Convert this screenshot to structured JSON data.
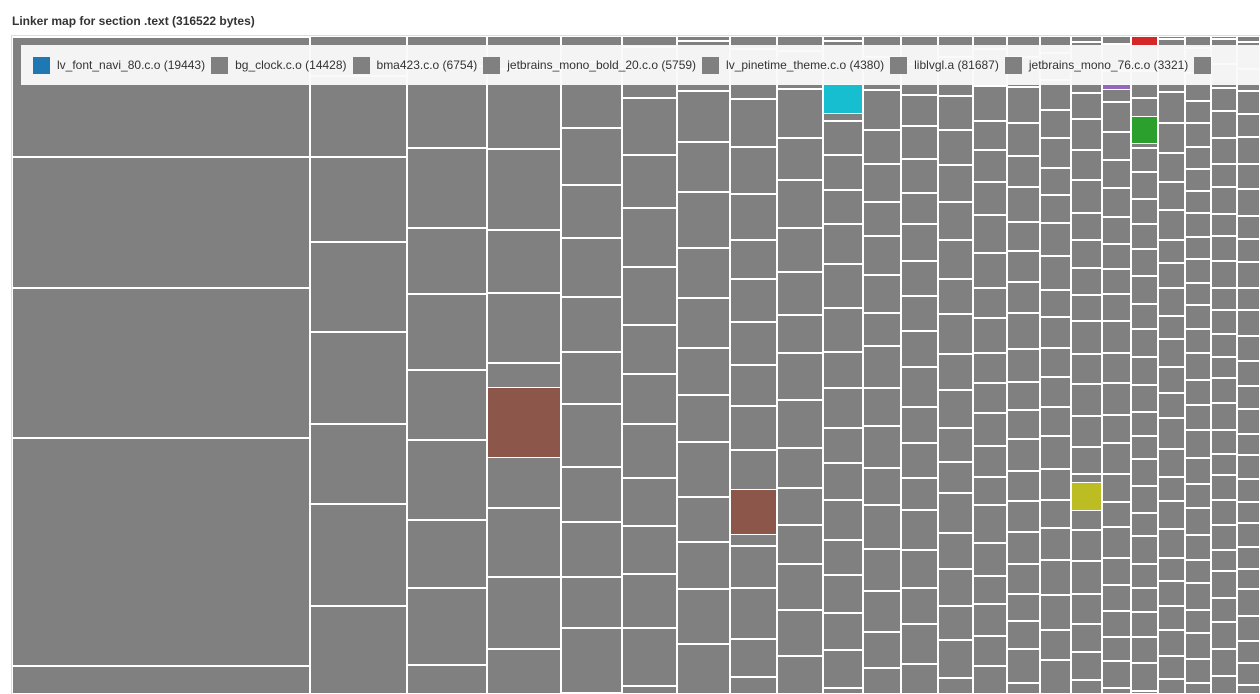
{
  "chart_data": {
    "type": "treemap",
    "title": "Linker map for section .text (316522 bytes)",
    "legend_placement": "top",
    "legend": [
      {
        "label": "lv_font_navi_80.c.o (19443)",
        "name": "lv_font_navi_80.c.o",
        "value": 19443,
        "color": "#1f77b4"
      },
      {
        "label": "bg_clock.c.o (14428)",
        "name": "bg_clock.c.o",
        "value": 14428,
        "color": "#808080"
      },
      {
        "label": "bma423.c.o (6754)",
        "name": "bma423.c.o",
        "value": 6754,
        "color": "#808080"
      },
      {
        "label": "jetbrains_mono_bold_20.c.o (5759)",
        "name": "jetbrains_mono_bold_20.c.o",
        "value": 5759,
        "color": "#808080"
      },
      {
        "label": "lv_pinetime_theme.c.o (4380)",
        "name": "lv_pinetime_theme.c.o",
        "value": 4380,
        "color": "#808080"
      },
      {
        "label": "liblvgl.a (81687)",
        "name": "liblvgl.a",
        "value": 81687,
        "color": "#808080"
      },
      {
        "label": "jetbrains_mono_76.c.o (3321)",
        "name": "jetbrains_mono_76.c.o",
        "value": 3321,
        "color": "#808080"
      },
      {
        "label": "",
        "name": "",
        "color": "#808080"
      }
    ],
    "highlight_colors": [
      "#8c564b",
      "#17becf",
      "#bcbd22",
      "#2ca02c",
      "#9467bd",
      "#d62728"
    ]
  }
}
